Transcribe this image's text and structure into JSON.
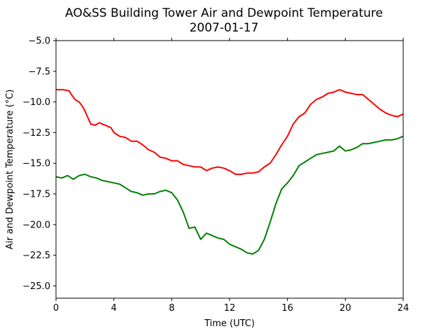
{
  "chart_data": {
    "type": "line",
    "title": "AO&SS Building Tower Air and Dewpoint Temperature",
    "subtitle": "2007-01-17",
    "xlabel": "Time (UTC)",
    "ylabel": "Air and Dewpoint Temperature (°C)",
    "xlim": [
      0,
      24
    ],
    "ylim": [
      -26,
      -5
    ],
    "x_ticks": [
      0,
      4,
      8,
      12,
      16,
      20,
      24
    ],
    "x_tick_labels": [
      "0",
      "4",
      "8",
      "12",
      "16",
      "20",
      "24"
    ],
    "y_ticks": [
      -5,
      -7.5,
      -10,
      -12.5,
      -15,
      -17.5,
      -20,
      -22.5,
      -25
    ],
    "y_tick_labels": [
      "−5.0",
      "−7.5",
      "−10.0",
      "−12.5",
      "−15.0",
      "−17.5",
      "−20.0",
      "−22.5",
      "−25.0"
    ],
    "grid": false,
    "series": [
      {
        "color": "#ff0000",
        "x": [
          0,
          0.5,
          0.9,
          1.3,
          1.6,
          1.9,
          2.1,
          2.4,
          2.7,
          3.0,
          3.4,
          3.8,
          4.0,
          4.4,
          4.8,
          5.2,
          5.6,
          6.0,
          6.4,
          6.8,
          7.2,
          7.6,
          8.0,
          8.4,
          8.8,
          9.2,
          9.6,
          10.0,
          10.4,
          10.8,
          11.2,
          11.6,
          12.0,
          12.4,
          12.8,
          13.2,
          13.6,
          14.0,
          14.4,
          14.8,
          15.2,
          15.6,
          16.0,
          16.4,
          16.8,
          17.2,
          17.6,
          18.0,
          18.4,
          18.8,
          19.2,
          19.6,
          20.0,
          20.4,
          20.8,
          21.2,
          21.6,
          22.0,
          22.4,
          22.8,
          23.2,
          23.6,
          24.0
        ],
        "y": [
          -9.0,
          -9.0,
          -9.1,
          -9.8,
          -10.0,
          -10.5,
          -11.0,
          -11.8,
          -11.9,
          -11.7,
          -11.9,
          -12.1,
          -12.5,
          -12.8,
          -12.9,
          -13.2,
          -13.2,
          -13.5,
          -13.9,
          -14.1,
          -14.5,
          -14.6,
          -14.8,
          -14.8,
          -15.1,
          -15.2,
          -15.3,
          -15.3,
          -15.6,
          -15.4,
          -15.3,
          -15.4,
          -15.6,
          -15.9,
          -15.9,
          -15.8,
          -15.8,
          -15.7,
          -15.3,
          -15.0,
          -14.3,
          -13.5,
          -12.8,
          -11.8,
          -11.2,
          -10.9,
          -10.2,
          -9.8,
          -9.6,
          -9.3,
          -9.2,
          -9.0,
          -9.2,
          -9.3,
          -9.4,
          -9.4,
          -9.8,
          -10.2,
          -10.6,
          -10.9,
          -11.1,
          -11.2,
          -11.0
        ]
      },
      {
        "color": "#008000",
        "x": [
          0,
          0.4,
          0.8,
          1.2,
          1.6,
          2.0,
          2.4,
          2.8,
          3.2,
          3.6,
          4.0,
          4.4,
          4.8,
          5.2,
          5.6,
          6.0,
          6.4,
          6.8,
          7.2,
          7.6,
          8.0,
          8.4,
          8.8,
          9.2,
          9.6,
          10.0,
          10.4,
          10.8,
          11.2,
          11.6,
          12.0,
          12.4,
          12.8,
          13.2,
          13.6,
          14.0,
          14.4,
          14.8,
          15.2,
          15.6,
          16.0,
          16.4,
          16.8,
          17.2,
          17.6,
          18.0,
          18.4,
          18.8,
          19.2,
          19.6,
          20.0,
          20.4,
          20.8,
          21.2,
          21.6,
          22.0,
          22.4,
          22.8,
          23.2,
          23.6,
          24.0
        ],
        "y": [
          -16.1,
          -16.2,
          -16.0,
          -16.3,
          -16.0,
          -15.9,
          -16.1,
          -16.2,
          -16.4,
          -16.5,
          -16.6,
          -16.7,
          -17.0,
          -17.3,
          -17.4,
          -17.6,
          -17.5,
          -17.5,
          -17.3,
          -17.2,
          -17.4,
          -18.0,
          -19.0,
          -20.3,
          -20.2,
          -21.2,
          -20.7,
          -20.9,
          -21.1,
          -21.2,
          -21.6,
          -21.8,
          -22.0,
          -22.3,
          -22.4,
          -22.1,
          -21.2,
          -19.8,
          -18.3,
          -17.1,
          -16.6,
          -16.0,
          -15.2,
          -14.9,
          -14.6,
          -14.3,
          -14.2,
          -14.1,
          -14.0,
          -13.6,
          -14.0,
          -13.9,
          -13.7,
          -13.4,
          -13.4,
          -13.3,
          -13.2,
          -13.1,
          -13.1,
          -13.0,
          -12.8
        ]
      }
    ]
  }
}
